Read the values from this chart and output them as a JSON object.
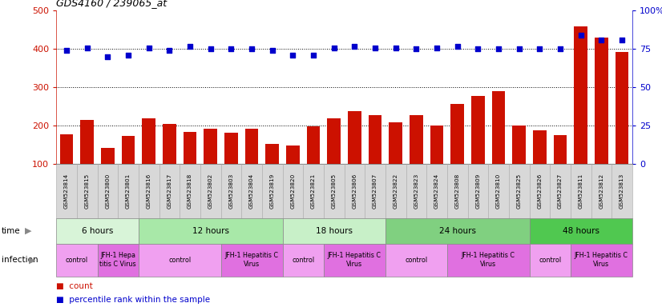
{
  "title": "GDS4160 / 239065_at",
  "samples": [
    "GSM523814",
    "GSM523815",
    "GSM523800",
    "GSM523801",
    "GSM523816",
    "GSM523817",
    "GSM523818",
    "GSM523802",
    "GSM523803",
    "GSM523804",
    "GSM523819",
    "GSM523820",
    "GSM523821",
    "GSM523805",
    "GSM523806",
    "GSM523807",
    "GSM523822",
    "GSM523823",
    "GSM523824",
    "GSM523808",
    "GSM523809",
    "GSM523810",
    "GSM523825",
    "GSM523826",
    "GSM523827",
    "GSM523811",
    "GSM523812",
    "GSM523813"
  ],
  "counts": [
    178,
    215,
    143,
    173,
    220,
    205,
    185,
    193,
    183,
    193,
    153,
    148,
    198,
    220,
    238,
    228,
    210,
    227,
    200,
    258,
    278,
    290,
    200,
    188,
    175,
    460,
    430,
    393
  ],
  "percentiles": [
    74,
    76,
    70,
    71,
    76,
    74,
    77,
    75,
    75,
    75,
    74,
    71,
    71,
    76,
    77,
    76,
    76,
    75,
    76,
    77,
    75,
    75,
    75,
    75,
    75,
    84,
    81,
    81
  ],
  "bar_color": "#cc1100",
  "dot_color": "#0000cc",
  "plot_bg": "#ffffff",
  "tick_bg": "#d8d8d8",
  "time_groups": [
    {
      "label": "6 hours",
      "start": 0,
      "end": 3,
      "color": "#d8f4d8"
    },
    {
      "label": "12 hours",
      "start": 4,
      "end": 10,
      "color": "#a8e8a8"
    },
    {
      "label": "18 hours",
      "start": 11,
      "end": 15,
      "color": "#c8f0c8"
    },
    {
      "label": "24 hours",
      "start": 16,
      "end": 22,
      "color": "#80d080"
    },
    {
      "label": "48 hours",
      "start": 23,
      "end": 27,
      "color": "#50c850"
    }
  ],
  "infection_groups": [
    {
      "label": "control",
      "start": 0,
      "end": 1,
      "color": "#f0a0f0"
    },
    {
      "label": "JFH-1 Hepa\ntitis C Virus",
      "start": 2,
      "end": 3,
      "color": "#e070e0"
    },
    {
      "label": "control",
      "start": 4,
      "end": 7,
      "color": "#f0a0f0"
    },
    {
      "label": "JFH-1 Hepatitis C\nVirus",
      "start": 8,
      "end": 10,
      "color": "#e070e0"
    },
    {
      "label": "control",
      "start": 11,
      "end": 12,
      "color": "#f0a0f0"
    },
    {
      "label": "JFH-1 Hepatitis C\nVirus",
      "start": 13,
      "end": 15,
      "color": "#e070e0"
    },
    {
      "label": "control",
      "start": 16,
      "end": 18,
      "color": "#f0a0f0"
    },
    {
      "label": "JFH-1 Hepatitis C\nVirus",
      "start": 19,
      "end": 22,
      "color": "#e070e0"
    },
    {
      "label": "control",
      "start": 23,
      "end": 24,
      "color": "#f0a0f0"
    },
    {
      "label": "JFH-1 Hepatitis C\nVirus",
      "start": 25,
      "end": 27,
      "color": "#e070e0"
    }
  ]
}
